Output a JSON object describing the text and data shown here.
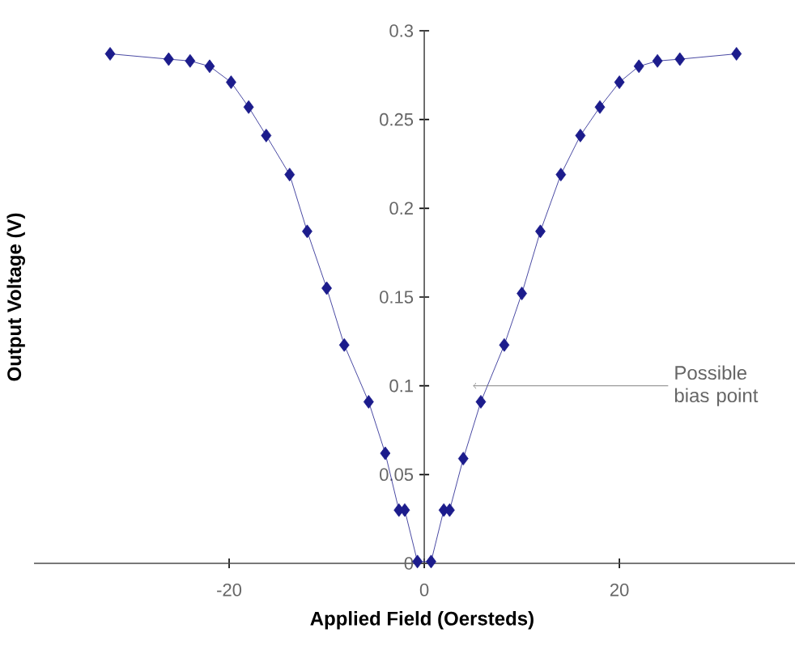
{
  "chart_data": {
    "type": "line",
    "xlabel": "Applied Field (Oersteds)",
    "ylabel": "Output Voltage (V)",
    "x": [
      -32.2,
      -26.2,
      -24,
      -22,
      -19.8,
      -18,
      -16.2,
      -13.8,
      -12,
      -10,
      -8.2,
      -5.7,
      -4,
      -2.6,
      -2,
      -0.7,
      0.7,
      2,
      2.6,
      4,
      5.8,
      8.2,
      10,
      11.9,
      14,
      16,
      18,
      20,
      22,
      23.9,
      26.2,
      32
    ],
    "series": [
      {
        "color": "#1c1c8c",
        "values": [
          0.287,
          0.284,
          0.283,
          0.28,
          0.271,
          0.257,
          0.241,
          0.219,
          0.187,
          0.155,
          0.123,
          0.091,
          0.062,
          0.03,
          0.03,
          0.001,
          0.001,
          0.03,
          0.03,
          0.059,
          0.091,
          0.123,
          0.152,
          0.187,
          0.219,
          0.241,
          0.257,
          0.271,
          0.28,
          0.283,
          0.284,
          0.287
        ]
      }
    ],
    "xlim": [
      -40,
      38
    ],
    "ylim": [
      0,
      0.3
    ],
    "xticks": [
      -20,
      0,
      20
    ],
    "yticks": [
      0,
      0.05,
      0.1,
      0.15,
      0.2,
      0.25,
      0.3
    ],
    "marker": "diamond",
    "line_style": "solid",
    "grid": false,
    "legend": false,
    "annotations": [
      {
        "text": "Possible bias point",
        "x": 5,
        "y": 0.1
      }
    ]
  }
}
